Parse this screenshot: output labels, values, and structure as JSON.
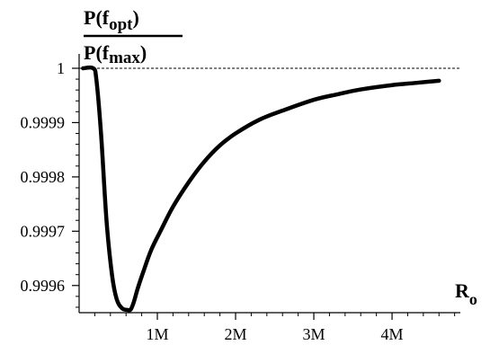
{
  "chart_data": {
    "type": "line",
    "title": "",
    "ylabel": {
      "numerator": "P(f",
      "numerator_sub": "opt",
      "numerator_close": ")",
      "denominator": "P(f",
      "denominator_sub": "max",
      "denominator_close": ")"
    },
    "xlabel": {
      "main": "R",
      "sub": "o"
    },
    "xlim": [
      0,
      4.85
    ],
    "ylim": [
      0.99955,
      1.0
    ],
    "x_ticks": [
      {
        "value": 1,
        "label": "1M"
      },
      {
        "value": 2,
        "label": "2M"
      },
      {
        "value": 3,
        "label": "3M"
      },
      {
        "value": 4,
        "label": "4M"
      }
    ],
    "y_ticks": [
      {
        "value": 1.0,
        "label": "1"
      },
      {
        "value": 0.9999,
        "label": "0.9999"
      },
      {
        "value": 0.9998,
        "label": "0.9998"
      },
      {
        "value": 0.9997,
        "label": "0.9997"
      },
      {
        "value": 0.9996,
        "label": "0.9996"
      }
    ],
    "reference_line": {
      "y": 1.0,
      "style": "dashed"
    },
    "grid": false,
    "series": [
      {
        "color": "#000000",
        "x": [
          0.05,
          0.18,
          0.22,
          0.28,
          0.35,
          0.42,
          0.48,
          0.55,
          0.62,
          0.66,
          0.7,
          0.75,
          0.82,
          0.92,
          1.05,
          1.2,
          1.4,
          1.6,
          1.8,
          2.0,
          2.3,
          2.6,
          3.0,
          3.3,
          3.6,
          4.0,
          4.3,
          4.6
        ],
        "y": [
          1.0,
          1.0,
          0.99998,
          0.99988,
          0.99972,
          0.99962,
          0.999575,
          0.999558,
          0.999555,
          0.999556,
          0.99957,
          0.999595,
          0.999625,
          0.999665,
          0.999703,
          0.999745,
          0.99979,
          0.999828,
          0.999858,
          0.99988,
          0.999905,
          0.999922,
          0.999942,
          0.999952,
          0.999961,
          0.999969,
          0.999973,
          0.999977
        ]
      }
    ]
  }
}
